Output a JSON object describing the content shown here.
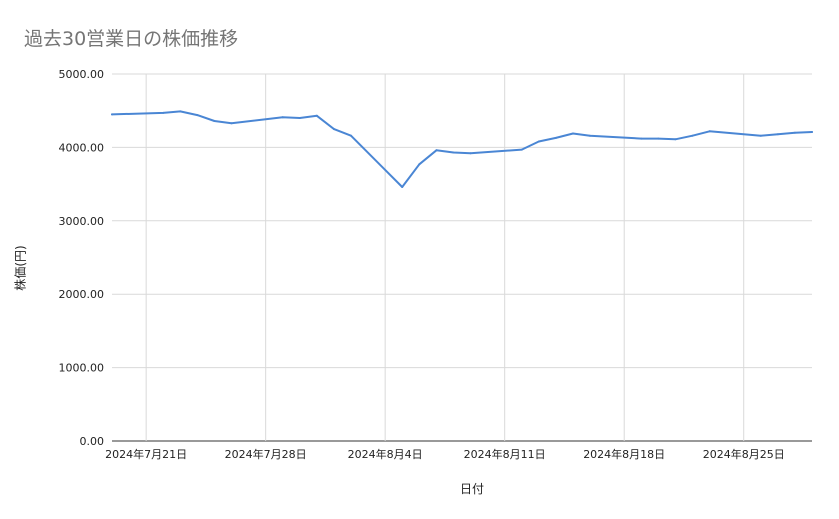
{
  "chart_data": {
    "type": "line",
    "title": "過去30営業日の株価推移",
    "xlabel": "日付",
    "ylabel": "株価(円)",
    "ylim": [
      0,
      5000
    ],
    "y_ticks": [
      "0.00",
      "1000.00",
      "2000.00",
      "3000.00",
      "4000.00",
      "5000.00"
    ],
    "y_tick_values": [
      0,
      1000,
      2000,
      3000,
      4000,
      5000
    ],
    "x_range": [
      "2024-07-19",
      "2024-08-29"
    ],
    "x_ticks": [
      {
        "date": "2024-07-21",
        "label": "2024年7月21日"
      },
      {
        "date": "2024-07-28",
        "label": "2024年7月28日"
      },
      {
        "date": "2024-08-04",
        "label": "2024年8月4日"
      },
      {
        "date": "2024-08-11",
        "label": "2024年8月11日"
      },
      {
        "date": "2024-08-18",
        "label": "2024年8月18日"
      },
      {
        "date": "2024-08-25",
        "label": "2024年8月25日"
      }
    ],
    "grid": true,
    "line_color": "#4a86d4",
    "series": [
      {
        "x": [
          "2024-07-19",
          "2024-07-22",
          "2024-07-23",
          "2024-07-24",
          "2024-07-25",
          "2024-07-26",
          "2024-07-29",
          "2024-07-30",
          "2024-07-31",
          "2024-08-01",
          "2024-08-02",
          "2024-08-05",
          "2024-08-06",
          "2024-08-07",
          "2024-08-08",
          "2024-08-09",
          "2024-08-12",
          "2024-08-13",
          "2024-08-14",
          "2024-08-15",
          "2024-08-16",
          "2024-08-19",
          "2024-08-20",
          "2024-08-21",
          "2024-08-22",
          "2024-08-23",
          "2024-08-26",
          "2024-08-27",
          "2024-08-28",
          "2024-08-29"
        ],
        "y": [
          4450,
          4470,
          4490,
          4440,
          4360,
          4330,
          4410,
          4400,
          4430,
          4250,
          4160,
          3460,
          3770,
          3960,
          3930,
          3920,
          3970,
          4080,
          4130,
          4190,
          4160,
          4120,
          4120,
          4110,
          4160,
          4220,
          4160,
          4180,
          4200,
          4210
        ]
      }
    ]
  }
}
